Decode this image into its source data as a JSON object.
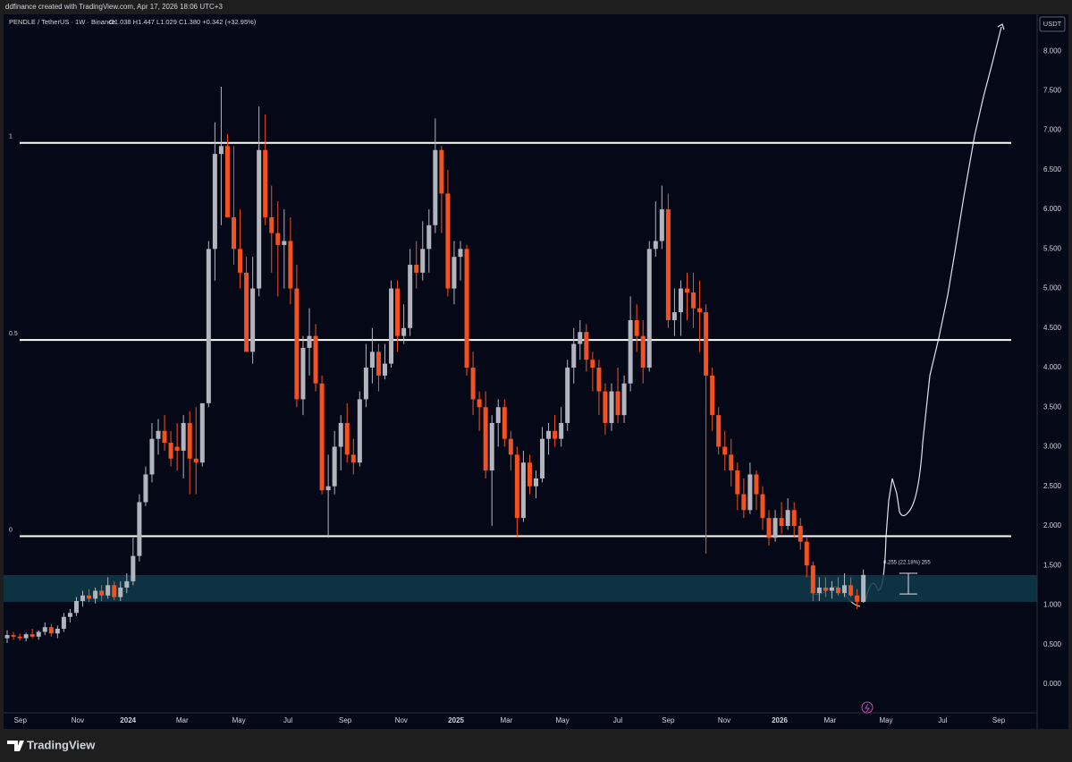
{
  "header": "ddfinance created with TradingView.com, Apr 17, 2026 18:06 UTC+3",
  "footer": "TradingView",
  "chart_data": {
    "type": "candlestick",
    "legend_symbol": "PENDLE / TetherUS · 1W · Binance",
    "legend_ohlc": "O1.038 H1.447 L1.029 C1.380 +0.342 (+32.95%)",
    "currency": "USDT",
    "series": [
      {
        "name": "PENDLE / TetherUS",
        "up_color": "#b2b5be",
        "down_color": "#f5511e",
        "open": [
          0.58,
          0.62,
          0.6,
          0.58,
          0.63,
          0.6,
          0.66,
          0.72,
          0.64,
          0.7,
          0.85,
          0.9,
          1.05,
          1.12,
          1.08,
          1.18,
          1.12,
          1.25,
          1.1,
          1.22,
          1.3,
          1.62,
          2.3,
          2.65,
          3.1,
          3.2,
          3.05,
          3.0,
          2.95,
          3.3,
          2.85,
          2.8,
          3.55,
          5.5,
          6.7,
          6.8,
          5.9,
          5.5,
          5.2,
          4.2,
          5.0,
          6.75,
          5.9,
          5.7,
          5.55,
          5.6,
          5.0,
          3.6,
          4.25,
          4.4,
          3.8,
          2.45,
          2.5,
          3.0,
          3.3,
          2.9,
          2.8,
          3.6,
          4.0,
          4.2,
          3.9,
          4.05,
          5.0,
          4.4,
          4.5,
          5.3,
          5.2,
          5.5,
          5.8,
          6.75,
          6.2,
          5.0,
          5.4,
          5.5,
          4.0,
          3.6,
          3.5,
          2.7,
          3.3,
          3.5,
          3.1,
          2.9,
          2.1,
          2.8,
          2.5,
          2.6,
          3.1,
          3.2,
          3.1,
          3.3,
          4.0,
          4.3,
          4.45,
          4.1,
          4.0,
          3.7,
          3.3,
          3.7,
          3.4,
          3.8,
          4.6,
          4.4,
          4.0,
          5.5,
          5.6,
          6.0,
          4.6,
          4.7,
          5.0,
          4.95,
          4.75,
          4.7,
          3.9,
          3.4,
          3.0,
          2.9,
          2.7,
          2.4,
          2.2,
          2.65,
          2.4,
          2.1,
          1.85,
          2.1,
          2.0,
          2.2,
          2.0,
          1.8,
          1.5,
          1.15,
          1.22,
          1.18,
          1.22,
          1.15,
          1.25,
          1.12,
          1.038
        ],
        "high": [
          0.68,
          0.66,
          0.64,
          0.65,
          0.7,
          0.68,
          0.78,
          0.76,
          0.74,
          0.9,
          0.95,
          1.1,
          1.18,
          1.2,
          1.22,
          1.25,
          1.35,
          1.3,
          1.3,
          1.4,
          1.85,
          2.4,
          2.75,
          3.3,
          3.35,
          3.4,
          3.2,
          3.3,
          3.4,
          3.45,
          3.5,
          3.55,
          5.6,
          7.1,
          7.55,
          6.95,
          6.8,
          6.0,
          5.4,
          5.4,
          7.3,
          7.2,
          6.3,
          6.1,
          6.0,
          5.9,
          5.3,
          4.4,
          4.75,
          4.55,
          3.9,
          2.9,
          3.2,
          3.4,
          3.55,
          3.1,
          3.7,
          4.3,
          4.5,
          4.3,
          4.3,
          5.1,
          5.1,
          4.8,
          5.5,
          5.6,
          5.85,
          6.0,
          7.15,
          6.8,
          6.5,
          5.6,
          5.6,
          5.55,
          4.2,
          3.7,
          3.7,
          3.4,
          3.6,
          3.6,
          3.2,
          3.0,
          2.95,
          2.9,
          2.7,
          3.25,
          3.3,
          3.4,
          3.5,
          4.1,
          4.5,
          4.6,
          4.55,
          4.2,
          4.1,
          3.8,
          3.8,
          4.0,
          3.9,
          4.9,
          4.8,
          4.6,
          5.6,
          6.1,
          6.3,
          6.2,
          5.0,
          5.1,
          5.2,
          5.2,
          5.1,
          4.8,
          4.0,
          3.5,
          3.2,
          3.1,
          2.8,
          2.6,
          2.8,
          2.7,
          2.5,
          2.2,
          2.2,
          2.3,
          2.35,
          2.3,
          2.1,
          1.85,
          1.55,
          1.35,
          1.35,
          1.3,
          1.35,
          1.4,
          1.35,
          1.2,
          1.447
        ],
        "low": [
          0.52,
          0.56,
          0.55,
          0.54,
          0.58,
          0.56,
          0.62,
          0.6,
          0.58,
          0.66,
          0.78,
          0.86,
          0.98,
          1.04,
          1.02,
          1.05,
          1.08,
          1.06,
          1.05,
          1.15,
          1.25,
          1.55,
          2.25,
          2.55,
          2.9,
          2.95,
          2.75,
          2.7,
          2.6,
          2.4,
          2.4,
          2.75,
          3.5,
          5.1,
          5.8,
          5.9,
          5.3,
          5.0,
          4.2,
          4.05,
          4.9,
          5.8,
          5.2,
          4.9,
          5.0,
          4.8,
          3.5,
          3.4,
          3.9,
          3.7,
          2.4,
          1.85,
          2.4,
          2.7,
          2.8,
          2.65,
          2.75,
          3.5,
          3.8,
          3.7,
          3.85,
          4.0,
          4.2,
          4.3,
          4.4,
          5.0,
          5.1,
          5.2,
          5.7,
          5.7,
          4.9,
          4.8,
          5.1,
          3.9,
          3.4,
          3.2,
          2.6,
          2.0,
          3.0,
          3.0,
          2.7,
          1.85,
          2.05,
          2.4,
          2.35,
          2.55,
          2.9,
          3.0,
          3.0,
          3.2,
          3.8,
          4.1,
          3.95,
          3.7,
          3.4,
          3.15,
          3.2,
          3.3,
          3.3,
          3.7,
          4.2,
          3.8,
          3.95,
          5.4,
          5.5,
          4.5,
          4.4,
          4.4,
          4.6,
          4.5,
          4.2,
          1.65,
          3.2,
          2.9,
          2.7,
          2.5,
          2.2,
          2.1,
          2.15,
          2.2,
          1.95,
          1.75,
          1.8,
          1.9,
          1.95,
          1.85,
          1.7,
          1.35,
          1.05,
          1.05,
          1.1,
          1.08,
          1.12,
          1.1,
          1.1,
          0.95,
          1.029
        ],
        "close": [
          0.62,
          0.6,
          0.58,
          0.63,
          0.6,
          0.66,
          0.72,
          0.64,
          0.7,
          0.85,
          0.9,
          1.05,
          1.12,
          1.08,
          1.18,
          1.12,
          1.25,
          1.1,
          1.22,
          1.3,
          1.62,
          2.3,
          2.65,
          3.1,
          3.2,
          3.05,
          2.85,
          2.95,
          3.3,
          2.85,
          2.8,
          3.55,
          5.5,
          6.7,
          6.8,
          5.9,
          5.5,
          5.2,
          4.2,
          5.0,
          6.75,
          5.9,
          5.7,
          5.55,
          5.6,
          5.0,
          3.6,
          4.25,
          4.4,
          3.8,
          2.45,
          2.5,
          3.0,
          3.3,
          2.9,
          2.8,
          3.6,
          4.0,
          4.2,
          3.9,
          4.05,
          5.0,
          4.4,
          4.5,
          5.3,
          5.2,
          5.5,
          5.8,
          6.75,
          6.2,
          5.0,
          5.4,
          5.5,
          4.0,
          3.6,
          3.5,
          2.7,
          3.3,
          3.5,
          3.1,
          2.9,
          2.1,
          2.8,
          2.5,
          2.6,
          3.1,
          3.2,
          3.1,
          3.3,
          4.0,
          4.3,
          4.45,
          4.1,
          4.0,
          3.7,
          3.3,
          3.7,
          3.4,
          3.8,
          4.6,
          4.4,
          4.0,
          5.5,
          5.6,
          6.0,
          4.6,
          4.7,
          5.0,
          4.95,
          4.75,
          4.7,
          3.9,
          3.4,
          3.0,
          2.9,
          2.7,
          2.4,
          2.2,
          2.65,
          2.4,
          2.1,
          1.85,
          2.1,
          2.0,
          2.2,
          2.0,
          1.8,
          1.5,
          1.15,
          1.22,
          1.18,
          1.22,
          1.15,
          1.25,
          1.12,
          1.04,
          1.38
        ]
      }
    ],
    "xlim": [
      -0.57,
      163.6
    ],
    "xticks": [
      {
        "value": 2.1,
        "label": "Sep"
      },
      {
        "value": 11.2,
        "label": "Nov"
      },
      {
        "value": 19.2,
        "label": "2024"
      },
      {
        "value": 27.8,
        "label": "Mar"
      },
      {
        "value": 36.8,
        "label": "May"
      },
      {
        "value": 44.6,
        "label": "Jul"
      },
      {
        "value": 53.7,
        "label": "Sep"
      },
      {
        "value": 62.6,
        "label": "Nov"
      },
      {
        "value": 71.3,
        "label": "2025"
      },
      {
        "value": 79.3,
        "label": "Mar"
      },
      {
        "value": 88.2,
        "label": "May"
      },
      {
        "value": 97,
        "label": "Jul"
      },
      {
        "value": 105,
        "label": "Sep"
      },
      {
        "value": 113.9,
        "label": "Nov"
      },
      {
        "value": 122.7,
        "label": "2026"
      },
      {
        "value": 130.7,
        "label": "Mar"
      },
      {
        "value": 139.6,
        "label": "May"
      },
      {
        "value": 148.6,
        "label": "Jul"
      },
      {
        "value": 157.5,
        "label": "Sep"
      }
    ],
    "ylim": [
      -0.34,
      8.42
    ],
    "yticks": [
      {
        "value": 0,
        "label": "0.000"
      },
      {
        "value": 0.5,
        "label": "0.500"
      },
      {
        "value": 1,
        "label": "1.000"
      },
      {
        "value": 1.5,
        "label": "1.500"
      },
      {
        "value": 2,
        "label": "2.000"
      },
      {
        "value": 2.5,
        "label": "2.500"
      },
      {
        "value": 3,
        "label": "3.000"
      },
      {
        "value": 3.5,
        "label": "3.500"
      },
      {
        "value": 4,
        "label": "4.000"
      },
      {
        "value": 4.5,
        "label": "4.500"
      },
      {
        "value": 5,
        "label": "5.000"
      },
      {
        "value": 5.5,
        "label": "5.500"
      },
      {
        "value": 6,
        "label": "6.000"
      },
      {
        "value": 6.5,
        "label": "6.500"
      },
      {
        "value": 7,
        "label": "7.000"
      },
      {
        "value": 7.5,
        "label": "7.500"
      },
      {
        "value": 8,
        "label": "8.000"
      }
    ],
    "levels": [
      {
        "value": 6.84,
        "label": "1"
      },
      {
        "value": 4.35,
        "label": "0.5"
      },
      {
        "value": 1.87,
        "label": "0"
      }
    ],
    "zone": [
      1.04,
      1.38
    ],
    "measure": [
      1.14,
      1.4
    ],
    "measure_label": "0.255 (22.18%) 255"
  }
}
